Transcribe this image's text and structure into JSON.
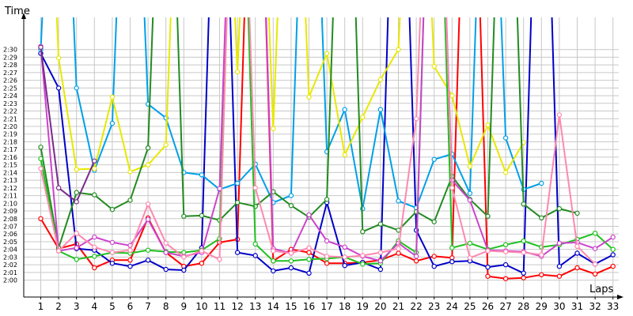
{
  "chart_data": {
    "type": "line",
    "ylabel": "Time",
    "xlabel": "Laps",
    "x": [
      1,
      2,
      3,
      4,
      5,
      6,
      7,
      8,
      9,
      10,
      11,
      12,
      13,
      14,
      15,
      16,
      17,
      18,
      19,
      20,
      21,
      22,
      23,
      24,
      25,
      26,
      27,
      28,
      29,
      30,
      31,
      32,
      33
    ],
    "y_tick_labels": [
      "2:00",
      "2:01",
      "2:02",
      "2:03",
      "2:04",
      "2:05",
      "2:06",
      "2:07",
      "2:08",
      "2:09",
      "2:10",
      "2:11",
      "2:12",
      "2:13",
      "2:14",
      "2:15",
      "2:16",
      "2:17",
      "2:18",
      "2:19",
      "2:20",
      "2:21",
      "2:22",
      "2:23",
      "2:24",
      "2:25",
      "2:26",
      "2:27",
      "2:28",
      "2:29",
      "2:30"
    ],
    "ylim_seconds": [
      118,
      140
    ],
    "grid": true,
    "legend": "none",
    "series": [
      {
        "color": "#ff0000",
        "values": [
          128,
          124.1,
          124.7,
          121.6,
          122.6,
          122.6,
          128.1,
          123.6,
          121.8,
          122.2,
          124.9,
          125.3,
          200,
          122.5,
          124,
          123.6,
          122.2,
          122.2,
          122.3,
          122.6,
          123.5,
          122.5,
          123.1,
          122.9,
          200,
          120.5,
          120.2,
          120.3,
          120.7,
          120.5,
          121.6,
          120.8,
          121.8
        ]
      },
      {
        "color": "#0000c8",
        "values": [
          149.5,
          145,
          124.1,
          123.9,
          122.2,
          121.8,
          122.6,
          121.4,
          121.3,
          124.2,
          200,
          123.6,
          123.2,
          121.2,
          121.6,
          120.9,
          130.1,
          121.9,
          122.3,
          121.4,
          200,
          126.5,
          121.8,
          122.4,
          122.5,
          121.7,
          122,
          120.9,
          200,
          121.8,
          123.5,
          122.1,
          123.3
        ]
      },
      {
        "color": "#00a0e8",
        "values": [
          150,
          200,
          145,
          134.3,
          140.4,
          200,
          142.9,
          141.1,
          134,
          133.7,
          131.8,
          132.6,
          135.1,
          130.1,
          131,
          200,
          136.7,
          142.2,
          129.3,
          142.2,
          130.3,
          129.4,
          135.7,
          136.4,
          131.3,
          200,
          138.5,
          131.8,
          132.6,
          null,
          null,
          null,
          null
        ]
      },
      {
        "color": "#e8e800",
        "values": [
          200,
          148.9,
          134.4,
          134.5,
          143.8,
          134.1,
          135,
          137.6,
          200,
          200,
          200,
          147.1,
          200,
          139.7,
          200,
          143.8,
          149.5,
          136.3,
          141.2,
          146.1,
          150,
          200,
          147.8,
          144,
          134.8,
          140.2,
          134,
          137.9,
          null,
          null,
          null,
          null,
          null
        ]
      },
      {
        "color": "#228b22",
        "values": [
          137.3,
          124.2,
          131.4,
          131.1,
          129.2,
          130.4,
          137.2,
          200,
          128.3,
          128.4,
          127.8,
          130.1,
          129.6,
          131.5,
          129.7,
          128.2,
          130.5,
          200,
          126.3,
          127.3,
          126.5,
          128.9,
          127.6,
          133.5,
          130.5,
          128.3,
          200,
          129.9,
          128.1,
          129.3,
          128.7,
          null,
          null
        ]
      },
      {
        "color": "#20c020",
        "values": [
          135.8,
          123.8,
          122.7,
          123.1,
          123.6,
          123.5,
          123.9,
          123.7,
          123.6,
          123.9,
          125.4,
          200,
          124.7,
          122.5,
          122.5,
          122.7,
          122.8,
          123,
          122.1,
          122.2,
          125.1,
          123.6,
          200,
          124.2,
          124.8,
          124,
          124.6,
          125.1,
          124.3,
          124.6,
          125.3,
          126.1,
          124
        ]
      },
      {
        "color": "#cc44cc",
        "values": [
          150.4,
          123.8,
          124.2,
          125.6,
          124.9,
          124.5,
          127.9,
          123.6,
          123.1,
          123.6,
          131.9,
          200,
          200,
          124.1,
          123.5,
          128.5,
          125.1,
          124.3,
          123.1,
          122.5,
          124.8,
          123.1,
          200,
          133,
          130.4,
          123.9,
          123.8,
          123.7,
          123.1,
          124.8,
          124.9,
          124.1,
          125.6
        ]
      },
      {
        "color": "#ff88b0",
        "values": [
          134.5,
          123.8,
          126.1,
          124.3,
          123.6,
          123.9,
          129.9,
          124.8,
          123,
          123.8,
          122.7,
          200,
          132,
          123.8,
          123.5,
          124.2,
          123.1,
          123,
          123.2,
          123.6,
          124.1,
          141,
          200,
          132,
          122.9,
          123.8,
          123.7,
          123.6,
          123.3,
          141.5,
          124.4,
          122.1,
          null
        ]
      },
      {
        "color": "#7a2a8a",
        "values": [
          150.3,
          132,
          130.2,
          135.5,
          null,
          null,
          null,
          null,
          null,
          null,
          null,
          null,
          null,
          null,
          null,
          null,
          null,
          null,
          null,
          null,
          null,
          null,
          null,
          null,
          null,
          null,
          null,
          null,
          null,
          null,
          null,
          null,
          null
        ]
      }
    ]
  }
}
